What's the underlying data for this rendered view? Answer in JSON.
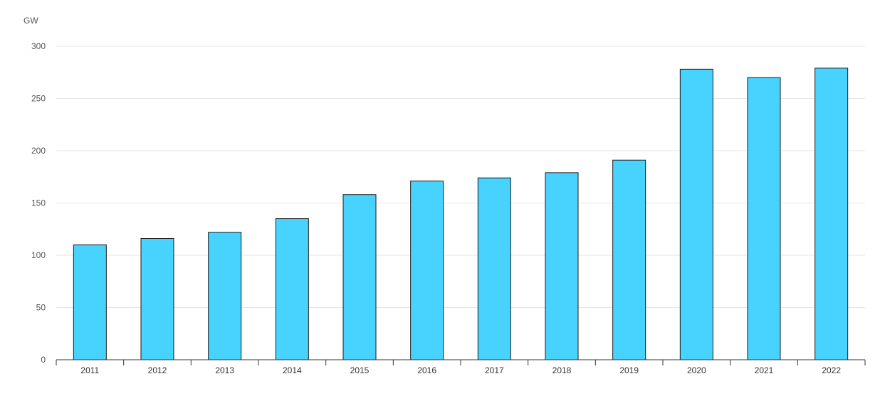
{
  "chart_data": {
    "type": "bar",
    "unit_label": "GW",
    "categories": [
      "2011",
      "2012",
      "2013",
      "2014",
      "2015",
      "2016",
      "2017",
      "2018",
      "2019",
      "2020",
      "2021",
      "2022"
    ],
    "values": [
      110,
      116,
      122,
      135,
      158,
      171,
      174,
      179,
      191,
      278,
      270,
      279
    ],
    "ylim": [
      0,
      300
    ],
    "yticks": [
      "0",
      "50",
      "100",
      "150",
      "200",
      "250",
      "300"
    ],
    "grid": true,
    "colors": {
      "bar": "#48d3ff",
      "bar_outline": "#1a1a1a",
      "grid": "#e6e6e6",
      "axis": "#333333"
    }
  }
}
